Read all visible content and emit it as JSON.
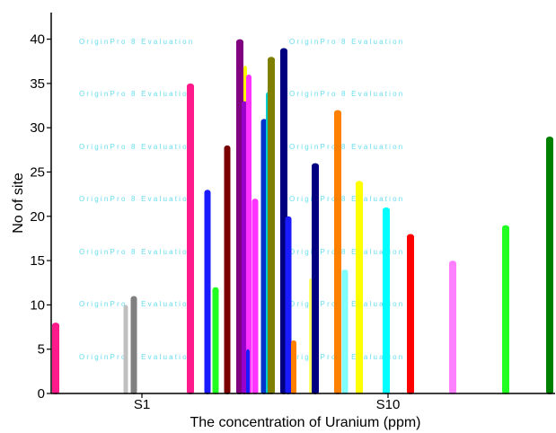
{
  "chart_data": {
    "type": "bar",
    "title": "",
    "xlabel": "The concentration of Uranium (ppm)",
    "ylabel": "No of site",
    "ylim": [
      0,
      43
    ],
    "yticks": [
      0,
      5,
      10,
      15,
      20,
      25,
      30,
      35,
      40
    ],
    "x_category_labels": [
      "S1",
      "S10"
    ],
    "watermark": "OriginPro 8 Evaluation",
    "grid": false,
    "legend": "none",
    "series": [
      {
        "value": 8,
        "color": "#ff1a8c"
      },
      {
        "value": 10,
        "color": "#c0c0c0"
      },
      {
        "value": 11,
        "color": "#808080"
      },
      {
        "value": 35,
        "color": "#ff1a8c"
      },
      {
        "value": 23,
        "color": "#1a1aff"
      },
      {
        "value": 12,
        "color": "#22ff22"
      },
      {
        "value": 28,
        "color": "#7a0000"
      },
      {
        "value": 30,
        "color": "#008080"
      },
      {
        "value": 40,
        "color": "#800080"
      },
      {
        "value": 37,
        "color": "#ffff00"
      },
      {
        "value": 33,
        "color": "#9900cc"
      },
      {
        "value": 36,
        "color": "#ff33ff"
      },
      {
        "value": 5,
        "color": "#1a1aff"
      },
      {
        "value": 22,
        "color": "#ff33ff"
      },
      {
        "value": 31,
        "color": "#0033cc"
      },
      {
        "value": 34,
        "color": "#00cccc"
      },
      {
        "value": 38,
        "color": "#808000"
      },
      {
        "value": 39,
        "color": "#000080"
      },
      {
        "value": 20,
        "color": "#1a1aff"
      },
      {
        "value": 6,
        "color": "#ff7f00"
      },
      {
        "value": 13,
        "color": "#ffff66"
      },
      {
        "value": 26,
        "color": "#000080"
      },
      {
        "value": 32,
        "color": "#ff7f00"
      },
      {
        "value": 14,
        "color": "#80ffff"
      },
      {
        "value": 24,
        "color": "#ffff00"
      },
      {
        "value": 21,
        "color": "#00ffff"
      },
      {
        "value": 18,
        "color": "#ff0000"
      },
      {
        "value": 15,
        "color": "#ff80ff"
      },
      {
        "value": 19,
        "color": "#22ff22"
      },
      {
        "value": 29,
        "color": "#008000"
      }
    ]
  }
}
